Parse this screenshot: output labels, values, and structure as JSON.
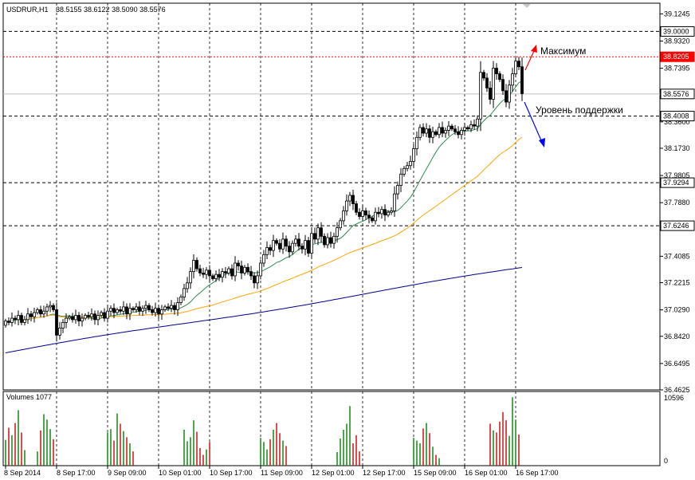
{
  "header": {
    "symbol": "USDRUR,H1",
    "ohlc": "38.5155 38.6122 38.5090 38.5576"
  },
  "volume_header": "Volumes 1077",
  "annotations": {
    "max_label": "Максимум",
    "support_label": "Уровень поддержки"
  },
  "colors": {
    "bull": "#008000",
    "bear": "#d00000",
    "ma_fast": "#2e8b57",
    "ma_mid": "#ffa500",
    "ma_slow": "#00008b",
    "hline": "#000000",
    "price_line": "#c0c0c0",
    "max_line": "#ff0000",
    "arrow_up": "#ff0000",
    "arrow_down": "#0000ff"
  },
  "chart_data": [
    {
      "type": "candlestick",
      "price_ticks": [
        "39.1245",
        "38.9320",
        "38.7395",
        "38.5470",
        "38.3600",
        "38.1730",
        "37.9805",
        "37.7880",
        "37.6246",
        "37.4085",
        "37.2215",
        "37.0290",
        "36.8420",
        "36.6495",
        "36.4625"
      ],
      "price_tick_values": [
        39.1245,
        38.932,
        38.7395,
        38.547,
        38.36,
        38.173,
        37.9805,
        37.788,
        37.6246,
        37.4085,
        37.2215,
        37.029,
        36.842,
        36.6495,
        36.4625
      ],
      "ylim": [
        36.4625,
        39.2
      ],
      "hlines": [
        {
          "value": 39.0,
          "label": "39.0000"
        },
        {
          "value": 38.4008,
          "label": "38.4008"
        },
        {
          "value": 37.9294,
          "label": "37.9294"
        },
        {
          "value": 37.6246,
          "label": "37.6246"
        }
      ],
      "max_line": {
        "value": 38.8205,
        "label": "38.8205"
      },
      "current_price": {
        "value": 38.5576,
        "label": "38.5576"
      },
      "x_labels": [
        "8 Sep 2014",
        "8 Sep 17:00",
        "9 Sep 09:00",
        "10 Sep 01:00",
        "10 Sep 17:00",
        "11 Sep 09:00",
        "12 Sep 01:00",
        "12 Sep 17:00",
        "15 Sep 09:00",
        "16 Sep 01:00",
        "16 Sep 17:00"
      ],
      "x_label_bars": [
        0,
        16,
        32,
        48,
        64,
        80,
        96,
        112,
        128,
        144,
        160
      ],
      "grid": true,
      "closes": [
        36.95,
        36.94,
        36.97,
        36.96,
        36.99,
        36.94,
        36.96,
        37.0,
        36.98,
        37.01,
        37.03,
        37.0,
        37.02,
        37.05,
        37.06,
        37.03,
        36.85,
        36.9,
        36.94,
        36.97,
        36.98,
        36.96,
        36.99,
        36.95,
        36.97,
        36.99,
        36.98,
        37.0,
        36.96,
        36.99,
        37.01,
        36.97,
        37.02,
        37.04,
        37.01,
        37.03,
        37.02,
        37.05,
        37.0,
        37.04,
        37.03,
        37.05,
        37.02,
        37.04,
        37.06,
        37.03,
        37.01,
        37.04,
        37.0,
        37.03,
        37.05,
        37.04,
        37.06,
        37.03,
        37.08,
        37.12,
        37.18,
        37.22,
        37.3,
        37.38,
        37.32,
        37.29,
        37.28,
        37.31,
        37.27,
        37.25,
        37.28,
        37.26,
        37.3,
        37.29,
        37.32,
        37.27,
        37.36,
        37.34,
        37.29,
        37.33,
        37.3,
        37.27,
        37.22,
        37.27,
        37.36,
        37.42,
        37.47,
        37.45,
        37.52,
        37.5,
        37.46,
        37.53,
        37.48,
        37.44,
        37.5,
        37.53,
        37.48,
        37.46,
        37.52,
        37.43,
        37.57,
        37.53,
        37.61,
        37.55,
        37.49,
        37.54,
        37.5,
        37.55,
        37.61,
        37.66,
        37.73,
        37.8,
        37.84,
        37.78,
        37.72,
        37.69,
        37.73,
        37.7,
        37.68,
        37.66,
        37.72,
        37.71,
        37.74,
        37.7,
        37.72,
        37.73,
        37.85,
        37.91,
        37.99,
        38.03,
        38.05,
        38.08,
        38.17,
        38.25,
        38.32,
        38.28,
        38.31,
        38.25,
        38.29,
        38.27,
        38.32,
        38.28,
        38.3,
        38.33,
        38.31,
        38.29,
        38.27,
        38.3,
        38.32,
        38.31,
        38.34,
        38.33,
        38.38,
        38.71,
        38.67,
        38.6,
        38.52,
        38.74,
        38.7,
        38.66,
        38.58,
        38.5,
        38.62,
        38.7,
        38.79,
        38.75,
        38.56
      ],
      "volume_axis": {
        "max_label": "10596",
        "min_label": "0",
        "max": 10596
      },
      "volume_bars": [
        {
          "bar": 0,
          "v": 3800
        },
        {
          "bar": 1,
          "v": 5600
        },
        {
          "bar": 2,
          "v": 4500
        },
        {
          "bar": 3,
          "v": 6300
        },
        {
          "bar": 4,
          "v": 8200
        },
        {
          "bar": 5,
          "v": 4900
        },
        {
          "bar": 6,
          "v": 2300
        },
        {
          "bar": 10,
          "v": 2100
        },
        {
          "bar": 11,
          "v": 5200
        },
        {
          "bar": 12,
          "v": 7600
        },
        {
          "bar": 13,
          "v": 6800
        },
        {
          "bar": 14,
          "v": 5400
        },
        {
          "bar": 15,
          "v": 3900
        },
        {
          "bar": 32,
          "v": 4900
        },
        {
          "bar": 33,
          "v": 5400
        },
        {
          "bar": 34,
          "v": 3700
        },
        {
          "bar": 35,
          "v": 7700
        },
        {
          "bar": 36,
          "v": 6200
        },
        {
          "bar": 37,
          "v": 5100
        },
        {
          "bar": 38,
          "v": 4200
        },
        {
          "bar": 39,
          "v": 3300
        },
        {
          "bar": 40,
          "v": 2100
        },
        {
          "bar": 56,
          "v": 5300
        },
        {
          "bar": 57,
          "v": 3600
        },
        {
          "bar": 58,
          "v": 4200
        },
        {
          "bar": 59,
          "v": 6700
        },
        {
          "bar": 60,
          "v": 5000
        },
        {
          "bar": 61,
          "v": 2600
        },
        {
          "bar": 62,
          "v": 1600
        },
        {
          "bar": 63,
          "v": 2400
        },
        {
          "bar": 64,
          "v": 3500
        },
        {
          "bar": 80,
          "v": 4100
        },
        {
          "bar": 81,
          "v": 3500
        },
        {
          "bar": 82,
          "v": 2400
        },
        {
          "bar": 83,
          "v": 3900
        },
        {
          "bar": 84,
          "v": 5300
        },
        {
          "bar": 85,
          "v": 6300
        },
        {
          "bar": 86,
          "v": 4800
        },
        {
          "bar": 87,
          "v": 3700
        },
        {
          "bar": 88,
          "v": 2900
        },
        {
          "bar": 104,
          "v": 2000
        },
        {
          "bar": 105,
          "v": 4000
        },
        {
          "bar": 106,
          "v": 5300
        },
        {
          "bar": 107,
          "v": 6200
        },
        {
          "bar": 108,
          "v": 8800
        },
        {
          "bar": 109,
          "v": 3300
        },
        {
          "bar": 110,
          "v": 4500
        },
        {
          "bar": 111,
          "v": 2100
        },
        {
          "bar": 128,
          "v": 4100
        },
        {
          "bar": 129,
          "v": 3700
        },
        {
          "bar": 130,
          "v": 3300
        },
        {
          "bar": 131,
          "v": 5500
        },
        {
          "bar": 132,
          "v": 6300
        },
        {
          "bar": 133,
          "v": 4800
        },
        {
          "bar": 134,
          "v": 2800
        },
        {
          "bar": 135,
          "v": 1600
        },
        {
          "bar": 136,
          "v": 1100
        },
        {
          "bar": 152,
          "v": 6200
        },
        {
          "bar": 153,
          "v": 5200
        },
        {
          "bar": 154,
          "v": 4900
        },
        {
          "bar": 155,
          "v": 6500
        },
        {
          "bar": 156,
          "v": 7900
        },
        {
          "bar": 157,
          "v": 6700
        },
        {
          "bar": 158,
          "v": 4400
        },
        {
          "bar": 159,
          "v": 10100
        },
        {
          "bar": 160,
          "v": 6800
        },
        {
          "bar": 161,
          "v": 4600
        }
      ]
    }
  ]
}
